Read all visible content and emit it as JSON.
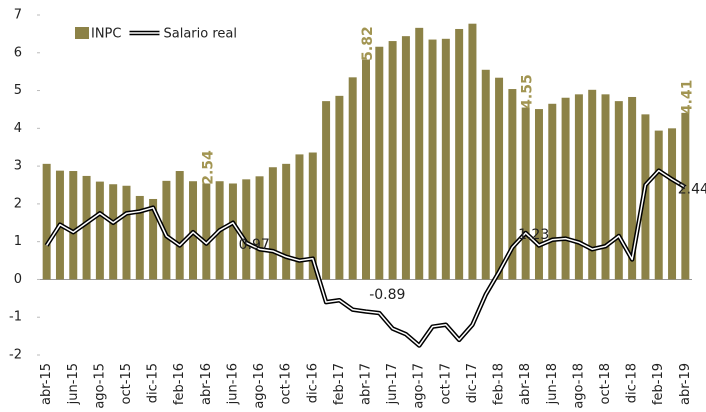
{
  "chart_data": {
    "type": "bar-line",
    "categories": [
      "abr-15",
      null,
      "jun-15",
      null,
      "ago-15",
      null,
      "oct-15",
      null,
      "dic-15",
      null,
      "feb-16",
      null,
      "abr-16",
      null,
      "jun-16",
      null,
      "ago-16",
      null,
      "oct-16",
      null,
      "dic-16",
      null,
      "feb-17",
      null,
      "abr-17",
      null,
      "jun-17",
      null,
      "ago-17",
      null,
      "oct-17",
      null,
      "dic-17",
      null,
      "feb-18",
      null,
      "abr-18",
      null,
      "jun-18",
      null,
      "ago-18",
      null,
      "oct-18",
      null,
      "dic-18",
      null,
      "feb-19",
      null,
      "abr-19"
    ],
    "series": [
      {
        "name": "INPC",
        "type": "bar",
        "color": "#8c8247",
        "values": [
          3.06,
          2.88,
          2.87,
          2.74,
          2.59,
          2.52,
          2.48,
          2.21,
          2.13,
          2.61,
          2.87,
          2.6,
          2.54,
          2.6,
          2.54,
          2.65,
          2.73,
          2.97,
          3.06,
          3.31,
          3.36,
          4.72,
          4.86,
          5.35,
          5.82,
          6.16,
          6.31,
          6.44,
          6.66,
          6.35,
          6.37,
          6.63,
          6.77,
          5.55,
          5.34,
          5.04,
          4.55,
          4.51,
          4.65,
          4.81,
          4.9,
          5.02,
          4.9,
          4.72,
          4.83,
          4.37,
          3.94,
          4.0,
          4.41
        ],
        "value_labels": [
          null,
          null,
          null,
          null,
          null,
          null,
          null,
          null,
          null,
          null,
          null,
          null,
          "2.54",
          null,
          null,
          null,
          null,
          null,
          null,
          null,
          null,
          null,
          null,
          null,
          "5.82",
          null,
          null,
          null,
          null,
          null,
          null,
          null,
          null,
          null,
          null,
          null,
          "4.55",
          null,
          null,
          null,
          null,
          null,
          null,
          null,
          null,
          null,
          null,
          null,
          "4.41"
        ]
      },
      {
        "name": "Salario real",
        "type": "line",
        "color": "#000000",
        "values": [
          0.9,
          1.45,
          1.25,
          1.5,
          1.75,
          1.5,
          1.75,
          1.8,
          1.9,
          1.15,
          0.9,
          1.25,
          0.95,
          1.3,
          1.5,
          0.97,
          0.8,
          0.75,
          0.6,
          0.5,
          0.55,
          -0.6,
          -0.55,
          -0.8,
          -0.85,
          -0.89,
          -1.3,
          -1.45,
          -1.75,
          -1.25,
          -1.2,
          -1.6,
          -1.2,
          -0.4,
          0.2,
          0.85,
          1.23,
          0.9,
          1.05,
          1.08,
          0.98,
          0.8,
          0.88,
          1.15,
          0.53,
          2.5,
          2.88,
          2.65,
          2.44
        ],
        "value_labels": [
          null,
          null,
          null,
          null,
          null,
          null,
          null,
          null,
          null,
          null,
          null,
          null,
          null,
          null,
          null,
          "0.97",
          null,
          null,
          null,
          null,
          null,
          null,
          null,
          null,
          null,
          "-0.89",
          null,
          null,
          null,
          null,
          null,
          null,
          null,
          null,
          null,
          null,
          "1.23",
          null,
          null,
          null,
          null,
          null,
          null,
          null,
          null,
          null,
          null,
          null,
          "2.44"
        ]
      }
    ],
    "ylim": [
      -2,
      7
    ],
    "yticks": [
      -2,
      -1,
      0,
      1,
      2,
      3,
      4,
      5,
      6,
      7
    ],
    "legend": "top-left"
  }
}
